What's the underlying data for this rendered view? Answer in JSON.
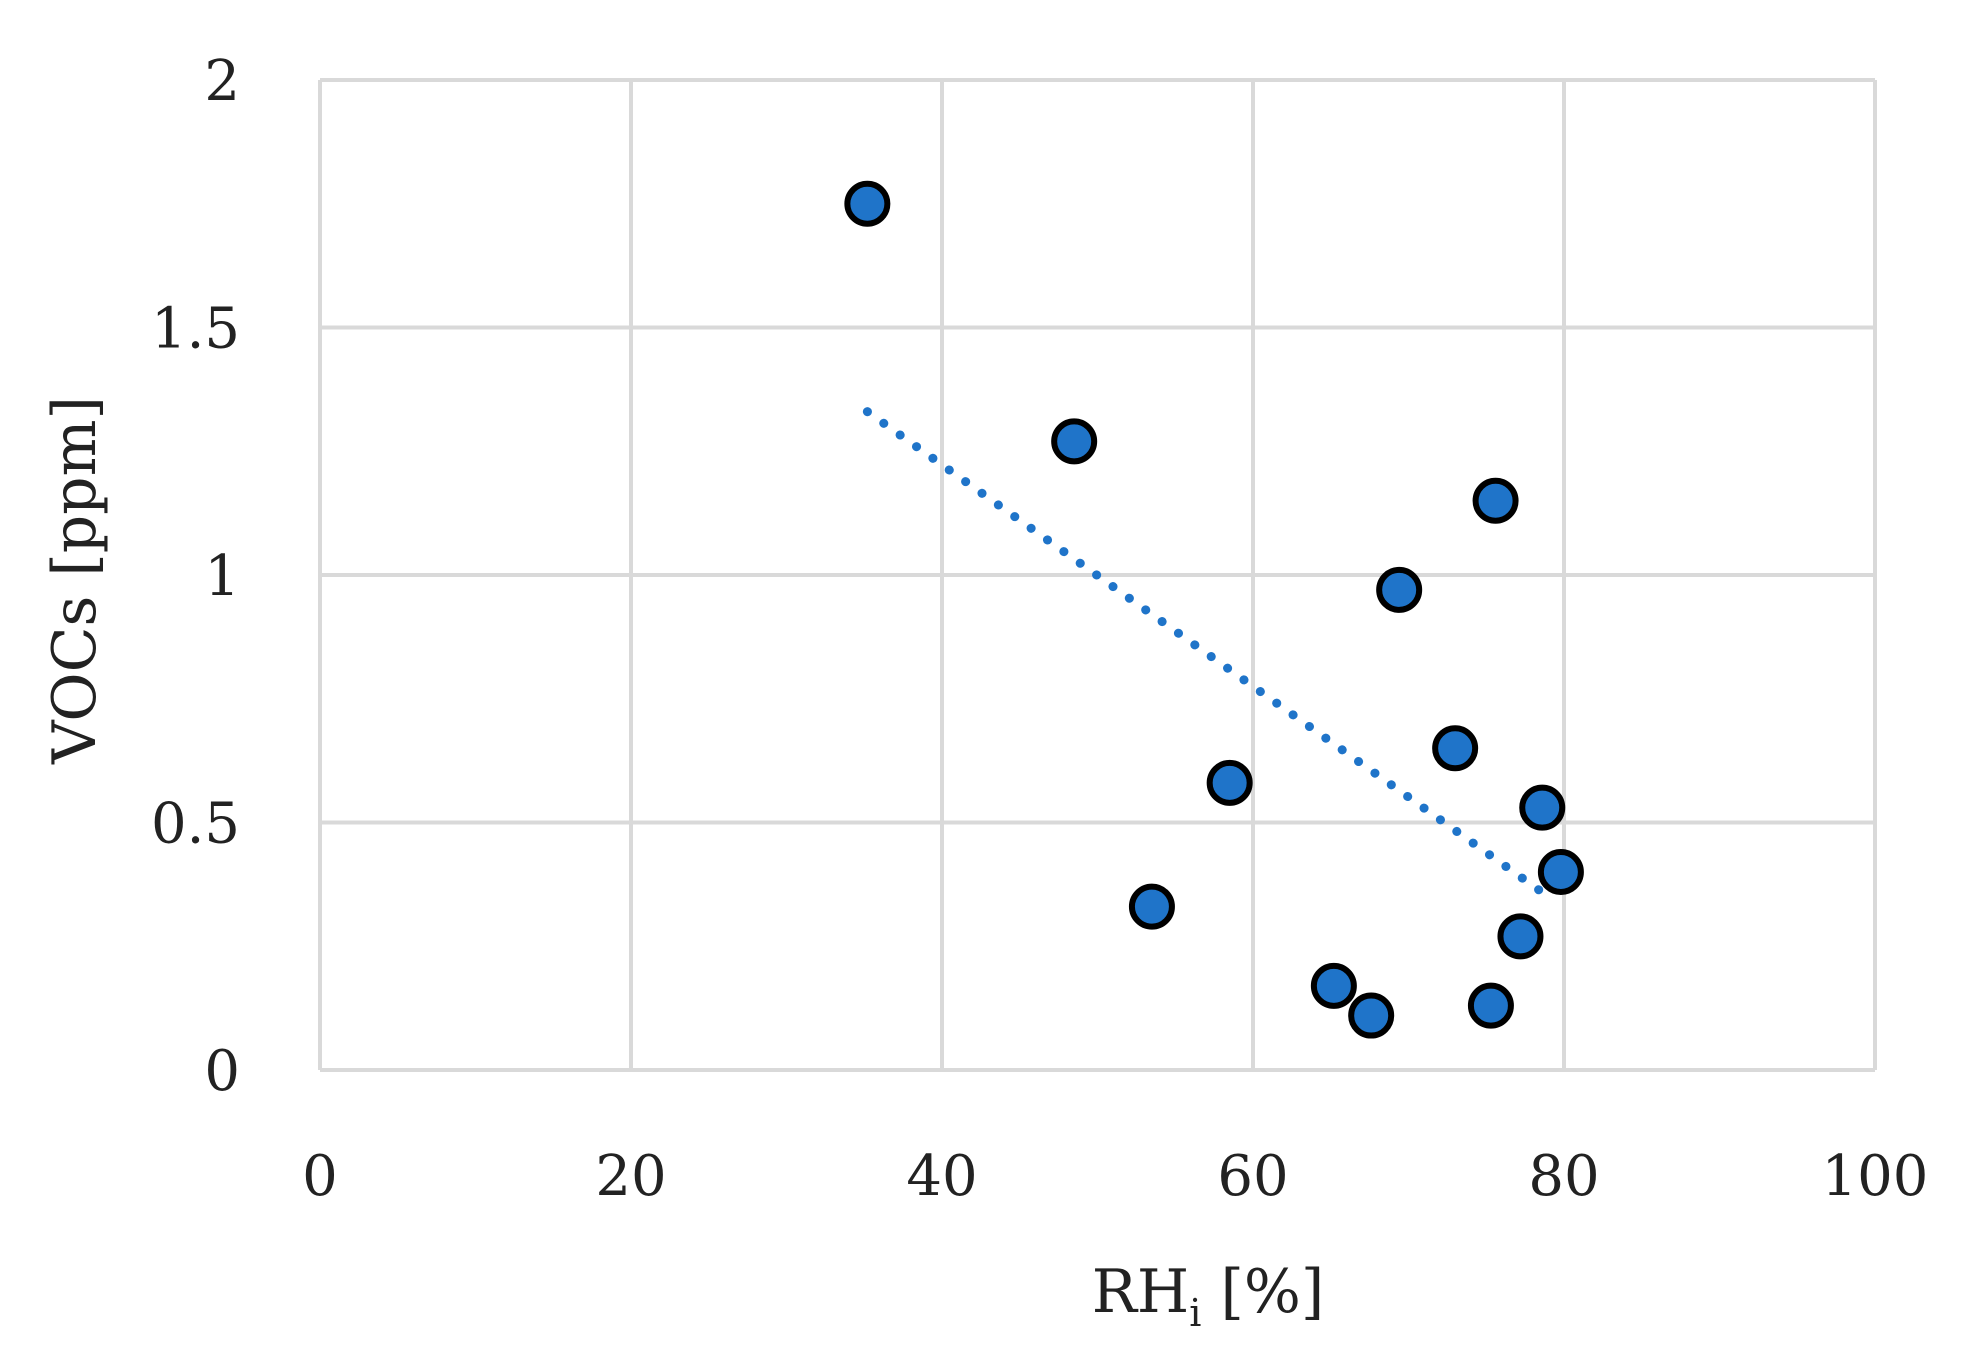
{
  "chart_data": {
    "type": "scatter",
    "title": "",
    "xlabel_main": "RH",
    "xlabel_sub": "i",
    "xlabel_unit": " [%]",
    "ylabel": "VOCs [ppm]",
    "xlim": [
      0,
      100
    ],
    "ylim": [
      0,
      2
    ],
    "x_ticks": [
      0,
      20,
      40,
      60,
      80,
      100
    ],
    "y_ticks": [
      0,
      0.5,
      1,
      1.5,
      2
    ],
    "x_tick_labels": [
      "0",
      "20",
      "40",
      "60",
      "80",
      "100"
    ],
    "y_tick_labels": [
      "0",
      "0.5",
      "1",
      "1.5",
      "2"
    ],
    "grid": true,
    "series": [
      {
        "marker_color": "#1f74c9",
        "edge_color": "#000000",
        "points": [
          {
            "x": 35.2,
            "y": 1.75
          },
          {
            "x": 48.5,
            "y": 1.27
          },
          {
            "x": 53.5,
            "y": 0.33
          },
          {
            "x": 58.5,
            "y": 0.58
          },
          {
            "x": 65.2,
            "y": 0.17
          },
          {
            "x": 67.6,
            "y": 0.11
          },
          {
            "x": 69.4,
            "y": 0.97
          },
          {
            "x": 73.0,
            "y": 0.65
          },
          {
            "x": 75.3,
            "y": 0.13
          },
          {
            "x": 75.6,
            "y": 1.15
          },
          {
            "x": 77.2,
            "y": 0.27
          },
          {
            "x": 78.6,
            "y": 0.53
          },
          {
            "x": 79.8,
            "y": 0.4
          }
        ]
      }
    ],
    "trendline": {
      "style": "dotted",
      "color": "#1f74c9",
      "x_range": [
        35.2,
        79.0
      ],
      "y_range": [
        1.33,
        0.35
      ]
    },
    "colors": {
      "grid": "#d9d9d9",
      "text": "#222222"
    }
  }
}
